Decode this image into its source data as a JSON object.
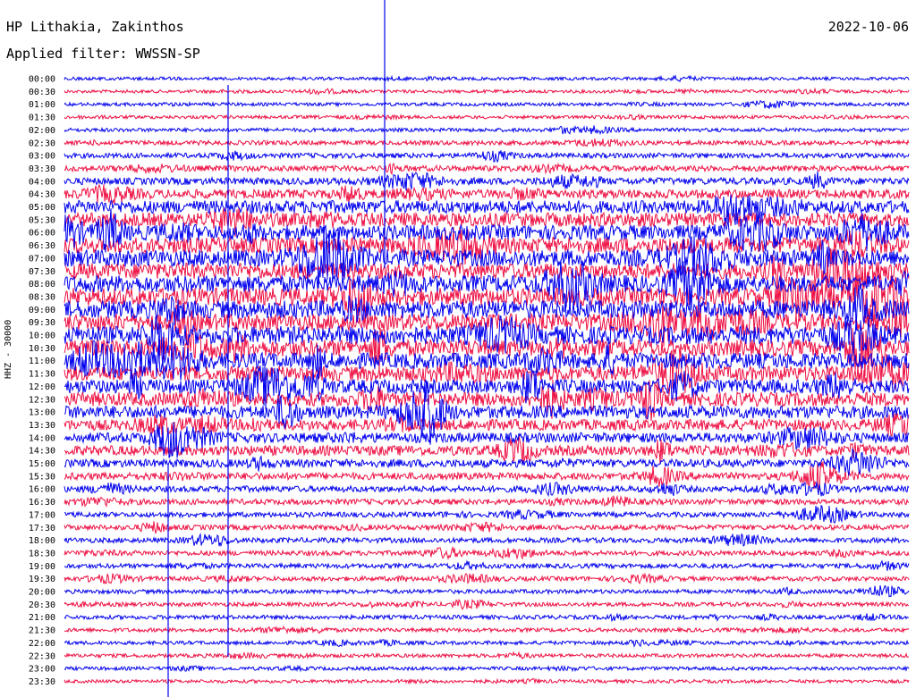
{
  "header": {
    "station": "HP Lithakia, Zakinthos",
    "date": "2022-10-06",
    "filter": "Applied filter: WWSSN-SP"
  },
  "chart_data": {
    "type": "line",
    "subtype": "helicorder",
    "ylabel": "HHZ - 30000",
    "rows": [
      "00:00",
      "00:30",
      "01:00",
      "01:30",
      "02:00",
      "02:30",
      "03:00",
      "03:30",
      "04:00",
      "04:30",
      "05:00",
      "05:30",
      "06:00",
      "06:30",
      "07:00",
      "07:30",
      "08:00",
      "08:30",
      "09:00",
      "09:30",
      "10:00",
      "10:30",
      "11:00",
      "11:30",
      "12:00",
      "12:30",
      "13:00",
      "13:30",
      "14:00",
      "14:30",
      "15:00",
      "15:30",
      "16:00",
      "16:30",
      "17:00",
      "17:30",
      "18:00",
      "18:30",
      "19:00",
      "19:30",
      "20:00",
      "20:30",
      "21:00",
      "21:30",
      "22:00",
      "22:30",
      "23:00",
      "23:30"
    ],
    "trace_colors": [
      "#0000ee",
      "#ee1144"
    ],
    "noise_level": [
      0.05,
      0.05,
      0.06,
      0.06,
      0.08,
      0.12,
      0.15,
      0.18,
      0.25,
      0.35,
      0.55,
      0.6,
      0.65,
      0.7,
      0.75,
      0.7,
      0.75,
      0.8,
      0.8,
      0.75,
      0.8,
      0.75,
      0.7,
      0.65,
      0.6,
      0.6,
      0.55,
      0.45,
      0.4,
      0.4,
      0.3,
      0.25,
      0.2,
      0.18,
      0.15,
      0.15,
      0.15,
      0.14,
      0.13,
      0.12,
      0.1,
      0.1,
      0.1,
      0.09,
      0.08,
      0.08,
      0.07,
      0.06
    ]
  }
}
